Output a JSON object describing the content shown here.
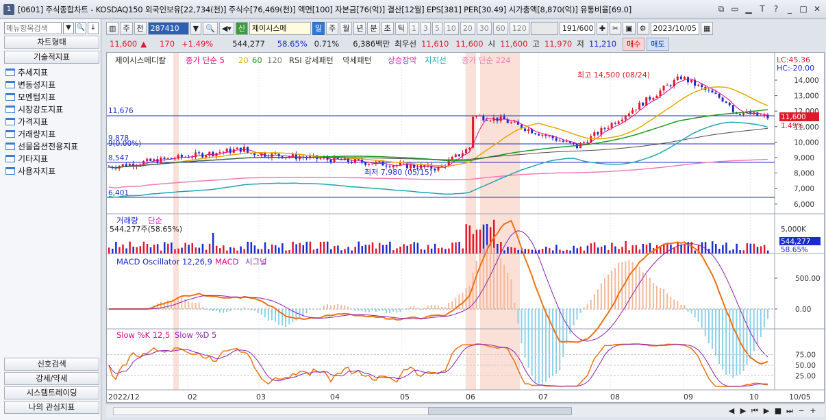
{
  "window": {
    "number": "1",
    "title": "[0601] 주식종합차트 - KOSDAQ150 외국인보유[22,734(천)] 주식수[76,469(천)] 액면[100] 자본금[76(억)] 결산[12월] EPS[381] PER[30.49] 시가총액[8,870(억)] 유통비율[69.0]"
  },
  "left_panel": {
    "search_placeholder": "메뉴항목검색",
    "chart_type_button": "차트형태",
    "indicator_button": "기술적지표",
    "tree": [
      "추세지표",
      "변동성지표",
      "모멘텀지표",
      "시장강도지표",
      "가격지표",
      "거래량지표",
      "선물옵션전용지표",
      "기타지표",
      "사용자지표"
    ],
    "bottom_buttons": [
      "신호검색",
      "강세/약세",
      "시스템트레이딩",
      "나의 관심지표"
    ]
  },
  "toolbar": {
    "period_type": "주",
    "prev": "전",
    "code": "287410",
    "stock_prefix": "신",
    "stock_name": "제이시스메",
    "periods": [
      "일",
      "주",
      "월",
      "년",
      "분",
      "초",
      "틱"
    ],
    "active_period": "일",
    "intervals": [
      "1",
      "3",
      "5",
      "10",
      "20",
      "30",
      "60",
      "120"
    ],
    "count": "191",
    "count_total": "/600",
    "date": "2023/10/05"
  },
  "quote": {
    "price": "11,600",
    "arrow": "▲",
    "change": "170",
    "change_pct": "+1.49%",
    "volume": "544,277",
    "volume_ratio": "58.65%",
    "turnover": "0.71%",
    "amount": "6,386백만",
    "best_ask_label": "최우선",
    "best_ask": "11,610",
    "best_bid": "11,600",
    "open_label": "시",
    "open": "11,600",
    "high_label": "고",
    "high": "11,970",
    "low_label": "저",
    "low": "11,210",
    "buy": "매수",
    "sell": "매도"
  },
  "price_panel": {
    "legend": [
      "제이시스메디칼",
      "종가 단순 5",
      "20",
      "60",
      "120",
      "RSI 강세패턴",
      "약세패턴",
      "상승장악",
      "지지선",
      "종가 단순 224"
    ],
    "lc": "LC:45.36",
    "hc": "HC:-20.00",
    "levels": [
      "11,676",
      "9,878",
      "9(0.00%)",
      "8,547",
      "6,401"
    ],
    "high_note": "최고 14,500 (08/24)",
    "low_note": "최저 7,980 (05/15)",
    "current_tag": "11,600",
    "current_pct": "1.49%",
    "y_ticks": [
      "14,000",
      "13,000",
      "12,000",
      "11,000",
      "10,000",
      "9,000",
      "8,000",
      "7,000",
      "6,000"
    ]
  },
  "volume_panel": {
    "legend": [
      "거래량",
      "단순"
    ],
    "value_text": "544,277주(58.65%)",
    "y_tick": "5,000K",
    "current_tag": "544,277",
    "current_pct": "58.65%"
  },
  "macd_panel": {
    "legend": [
      "MACD Oscillator 12,26,9",
      "MACD",
      "시그널"
    ],
    "y_ticks": [
      "500.00",
      "0.00"
    ]
  },
  "stoch_panel": {
    "legend": [
      "Slow %K 12,5",
      "Slow %D 5"
    ],
    "y_ticks": [
      "75.00",
      "50.00",
      "25.00"
    ]
  },
  "x_axis": [
    "2022/12",
    "02",
    "03",
    "04",
    "05",
    "06",
    "07",
    "08",
    "09",
    "10",
    "10/05"
  ],
  "colors": {
    "up": "#e0182a",
    "down": "#1a2bd0",
    "ma5": "#e6008a",
    "ma20": "#e8a800",
    "ma60": "#1a9a1a",
    "ma120": "#4a4a4a",
    "support": "#18a7b5",
    "ma224": "#f47ab8",
    "macd": "#f07010",
    "signal": "#8a20b0"
  }
}
